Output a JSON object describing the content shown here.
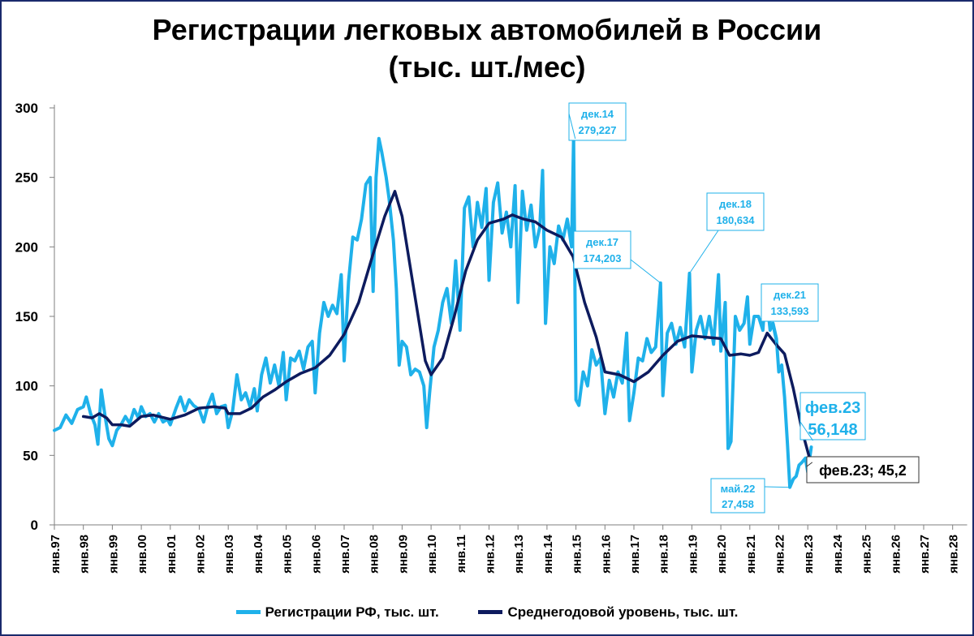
{
  "chart_data": {
    "type": "line",
    "title": "Регистрации легковых автомобилей в России",
    "subtitle": "(тыс. шт./мес)",
    "xlabel": "",
    "ylabel": "",
    "ylim": [
      0,
      300
    ],
    "y_ticks": [
      "0",
      "50",
      "100",
      "150",
      "200",
      "250",
      "300"
    ],
    "x_ticks": [
      "янв.97",
      "янв.98",
      "янв.99",
      "янв.00",
      "янв.01",
      "янв.02",
      "янв.03",
      "янв.04",
      "янв.05",
      "янв.06",
      "янв.07",
      "янв.08",
      "янв.09",
      "янв.10",
      "янв.11",
      "янв.12",
      "янв.13",
      "янв.14",
      "янв.15",
      "янв.16",
      "янв.17",
      "янв.18",
      "янв.19",
      "янв.20",
      "янв.21",
      "янв.22",
      "янв.23",
      "янв.24",
      "янв.25",
      "янв.26",
      "янв.27",
      "янв.28"
    ],
    "xlim": [
      1997.0,
      2028.5
    ],
    "grid": false,
    "legend_position": "bottom",
    "series": [
      {
        "name": "Регистрации РФ, тыс. шт.",
        "color": "#1fb1ea",
        "points": [
          [
            1997.0,
            68
          ],
          [
            1997.2,
            70
          ],
          [
            1997.4,
            79
          ],
          [
            1997.6,
            73
          ],
          [
            1997.8,
            83
          ],
          [
            1998.0,
            85
          ],
          [
            1998.1,
            92
          ],
          [
            1998.25,
            80
          ],
          [
            1998.4,
            72
          ],
          [
            1998.5,
            58
          ],
          [
            1998.62,
            97
          ],
          [
            1998.75,
            78
          ],
          [
            1998.88,
            62
          ],
          [
            1999.0,
            57
          ],
          [
            1999.15,
            68
          ],
          [
            1999.3,
            72
          ],
          [
            1999.45,
            78
          ],
          [
            1999.6,
            73
          ],
          [
            1999.75,
            83
          ],
          [
            1999.9,
            77
          ],
          [
            2000.0,
            85
          ],
          [
            2000.15,
            78
          ],
          [
            2000.3,
            80
          ],
          [
            2000.45,
            74
          ],
          [
            2000.6,
            80
          ],
          [
            2000.75,
            74
          ],
          [
            2000.9,
            76
          ],
          [
            2001.0,
            72
          ],
          [
            2001.2,
            84
          ],
          [
            2001.35,
            92
          ],
          [
            2001.5,
            82
          ],
          [
            2001.65,
            90
          ],
          [
            2001.8,
            86
          ],
          [
            2002.0,
            83
          ],
          [
            2002.15,
            74
          ],
          [
            2002.3,
            86
          ],
          [
            2002.45,
            94
          ],
          [
            2002.6,
            80
          ],
          [
            2002.75,
            85
          ],
          [
            2002.9,
            86
          ],
          [
            2003.0,
            70
          ],
          [
            2003.15,
            82
          ],
          [
            2003.3,
            108
          ],
          [
            2003.45,
            90
          ],
          [
            2003.6,
            95
          ],
          [
            2003.75,
            85
          ],
          [
            2003.9,
            98
          ],
          [
            2004.0,
            82
          ],
          [
            2004.15,
            108
          ],
          [
            2004.3,
            120
          ],
          [
            2004.45,
            102
          ],
          [
            2004.6,
            115
          ],
          [
            2004.75,
            100
          ],
          [
            2004.9,
            124
          ],
          [
            2005.0,
            90
          ],
          [
            2005.15,
            120
          ],
          [
            2005.3,
            118
          ],
          [
            2005.45,
            125
          ],
          [
            2005.6,
            112
          ],
          [
            2005.75,
            128
          ],
          [
            2005.9,
            132
          ],
          [
            2006.0,
            95
          ],
          [
            2006.15,
            138
          ],
          [
            2006.3,
            160
          ],
          [
            2006.45,
            150
          ],
          [
            2006.6,
            158
          ],
          [
            2006.75,
            152
          ],
          [
            2006.9,
            180
          ],
          [
            2007.0,
            118
          ],
          [
            2007.15,
            175
          ],
          [
            2007.3,
            207
          ],
          [
            2007.45,
            205
          ],
          [
            2007.6,
            220
          ],
          [
            2007.75,
            245
          ],
          [
            2007.9,
            250
          ],
          [
            2008.0,
            168
          ],
          [
            2008.1,
            250
          ],
          [
            2008.2,
            278
          ],
          [
            2008.3,
            268
          ],
          [
            2008.45,
            250
          ],
          [
            2008.55,
            235
          ],
          [
            2008.7,
            205
          ],
          [
            2008.8,
            170
          ],
          [
            2008.9,
            115
          ],
          [
            2009.0,
            132
          ],
          [
            2009.15,
            128
          ],
          [
            2009.3,
            108
          ],
          [
            2009.45,
            112
          ],
          [
            2009.6,
            110
          ],
          [
            2009.75,
            100
          ],
          [
            2009.85,
            70
          ],
          [
            2009.95,
            95
          ],
          [
            2010.1,
            128
          ],
          [
            2010.25,
            140
          ],
          [
            2010.4,
            160
          ],
          [
            2010.55,
            170
          ],
          [
            2010.7,
            145
          ],
          [
            2010.85,
            190
          ],
          [
            2011.0,
            140
          ],
          [
            2011.15,
            228
          ],
          [
            2011.3,
            236
          ],
          [
            2011.45,
            200
          ],
          [
            2011.6,
            232
          ],
          [
            2011.75,
            214
          ],
          [
            2011.9,
            242
          ],
          [
            2012.0,
            176
          ],
          [
            2012.15,
            232
          ],
          [
            2012.3,
            246
          ],
          [
            2012.45,
            210
          ],
          [
            2012.6,
            225
          ],
          [
            2012.75,
            200
          ],
          [
            2012.9,
            244
          ],
          [
            2013.0,
            160
          ],
          [
            2013.15,
            240
          ],
          [
            2013.3,
            212
          ],
          [
            2013.45,
            230
          ],
          [
            2013.6,
            200
          ],
          [
            2013.75,
            214
          ],
          [
            2013.85,
            255
          ],
          [
            2013.95,
            145
          ],
          [
            2014.1,
            200
          ],
          [
            2014.25,
            188
          ],
          [
            2014.4,
            215
          ],
          [
            2014.55,
            205
          ],
          [
            2014.7,
            220
          ],
          [
            2014.85,
            200
          ],
          [
            2014.92,
            279
          ],
          [
            2015.0,
            90
          ],
          [
            2015.1,
            86
          ],
          [
            2015.25,
            110
          ],
          [
            2015.4,
            100
          ],
          [
            2015.55,
            126
          ],
          [
            2015.7,
            115
          ],
          [
            2015.85,
            120
          ],
          [
            2016.0,
            80
          ],
          [
            2016.15,
            104
          ],
          [
            2016.3,
            92
          ],
          [
            2016.45,
            110
          ],
          [
            2016.6,
            102
          ],
          [
            2016.75,
            138
          ],
          [
            2016.85,
            75
          ],
          [
            2017.0,
            95
          ],
          [
            2017.15,
            120
          ],
          [
            2017.3,
            118
          ],
          [
            2017.45,
            134
          ],
          [
            2017.6,
            124
          ],
          [
            2017.75,
            128
          ],
          [
            2017.92,
            174
          ],
          [
            2018.0,
            93
          ],
          [
            2018.15,
            138
          ],
          [
            2018.3,
            145
          ],
          [
            2018.45,
            130
          ],
          [
            2018.6,
            142
          ],
          [
            2018.75,
            128
          ],
          [
            2018.92,
            181
          ],
          [
            2019.0,
            110
          ],
          [
            2019.15,
            140
          ],
          [
            2019.3,
            150
          ],
          [
            2019.45,
            134
          ],
          [
            2019.6,
            150
          ],
          [
            2019.75,
            130
          ],
          [
            2019.92,
            180
          ],
          [
            2020.0,
            125
          ],
          [
            2020.15,
            160
          ],
          [
            2020.25,
            55
          ],
          [
            2020.35,
            60
          ],
          [
            2020.5,
            150
          ],
          [
            2020.65,
            140
          ],
          [
            2020.8,
            145
          ],
          [
            2020.92,
            164
          ],
          [
            2021.0,
            130
          ],
          [
            2021.15,
            150
          ],
          [
            2021.3,
            150
          ],
          [
            2021.45,
            140
          ],
          [
            2021.55,
            171
          ],
          [
            2021.7,
            140
          ],
          [
            2021.8,
            145
          ],
          [
            2021.92,
            134
          ],
          [
            2022.0,
            110
          ],
          [
            2022.1,
            115
          ],
          [
            2022.2,
            92
          ],
          [
            2022.3,
            58
          ],
          [
            2022.38,
            27
          ],
          [
            2022.5,
            33
          ],
          [
            2022.6,
            35
          ],
          [
            2022.7,
            43
          ],
          [
            2022.8,
            45
          ],
          [
            2022.92,
            48
          ],
          [
            2023.0,
            38
          ],
          [
            2023.12,
            56
          ]
        ]
      },
      {
        "name": "Среднегодовой уровень, тыс. шт.",
        "color": "#0d1b5e",
        "points": [
          [
            1998.0,
            78
          ],
          [
            1998.3,
            77
          ],
          [
            1998.55,
            80
          ],
          [
            1998.8,
            77
          ],
          [
            1999.0,
            72
          ],
          [
            1999.3,
            72
          ],
          [
            1999.6,
            71
          ],
          [
            2000.0,
            78
          ],
          [
            2000.4,
            79
          ],
          [
            2001.0,
            76
          ],
          [
            2001.5,
            79
          ],
          [
            2002.0,
            84
          ],
          [
            2002.5,
            85
          ],
          [
            2002.9,
            84
          ],
          [
            2003.0,
            80
          ],
          [
            2003.4,
            80
          ],
          [
            2003.8,
            84
          ],
          [
            2004.2,
            92
          ],
          [
            2004.6,
            97
          ],
          [
            2005.0,
            103
          ],
          [
            2005.5,
            109
          ],
          [
            2006.0,
            113
          ],
          [
            2006.5,
            122
          ],
          [
            2007.0,
            137
          ],
          [
            2007.5,
            160
          ],
          [
            2008.0,
            195
          ],
          [
            2008.4,
            222
          ],
          [
            2008.75,
            240
          ],
          [
            2009.0,
            222
          ],
          [
            2009.4,
            170
          ],
          [
            2009.8,
            118
          ],
          [
            2010.0,
            108
          ],
          [
            2010.4,
            120
          ],
          [
            2010.8,
            150
          ],
          [
            2011.2,
            183
          ],
          [
            2011.6,
            205
          ],
          [
            2012.0,
            217
          ],
          [
            2012.5,
            220
          ],
          [
            2012.8,
            223
          ],
          [
            2013.2,
            220
          ],
          [
            2013.6,
            218
          ],
          [
            2014.0,
            212
          ],
          [
            2014.5,
            207
          ],
          [
            2014.9,
            193
          ],
          [
            2015.3,
            160
          ],
          [
            2015.7,
            135
          ],
          [
            2016.0,
            110
          ],
          [
            2016.5,
            108
          ],
          [
            2017.0,
            103
          ],
          [
            2017.5,
            110
          ],
          [
            2018.0,
            122
          ],
          [
            2018.5,
            132
          ],
          [
            2019.0,
            136
          ],
          [
            2019.5,
            135
          ],
          [
            2020.0,
            134
          ],
          [
            2020.3,
            122
          ],
          [
            2020.7,
            123
          ],
          [
            2021.0,
            122
          ],
          [
            2021.3,
            124
          ],
          [
            2021.6,
            138
          ],
          [
            2021.9,
            130
          ],
          [
            2022.2,
            123
          ],
          [
            2022.5,
            98
          ],
          [
            2022.8,
            68
          ],
          [
            2023.1,
            45
          ]
        ]
      }
    ],
    "annotations": [
      {
        "label": "дек.14",
        "value": "279,227",
        "color": "#1fb1ea"
      },
      {
        "label": "дек.17",
        "value": "174,203",
        "color": "#1fb1ea"
      },
      {
        "label": "дек.18",
        "value": "180,634",
        "color": "#1fb1ea"
      },
      {
        "label": "дек.21",
        "value": "133,593",
        "color": "#1fb1ea"
      },
      {
        "label": "май.22",
        "value": "27,458",
        "color": "#1fb1ea"
      },
      {
        "label": "фев.23",
        "value": "56,148",
        "color": "#1fb1ea"
      },
      {
        "label": "фев.23;  45,2",
        "color": "#000000"
      }
    ]
  }
}
